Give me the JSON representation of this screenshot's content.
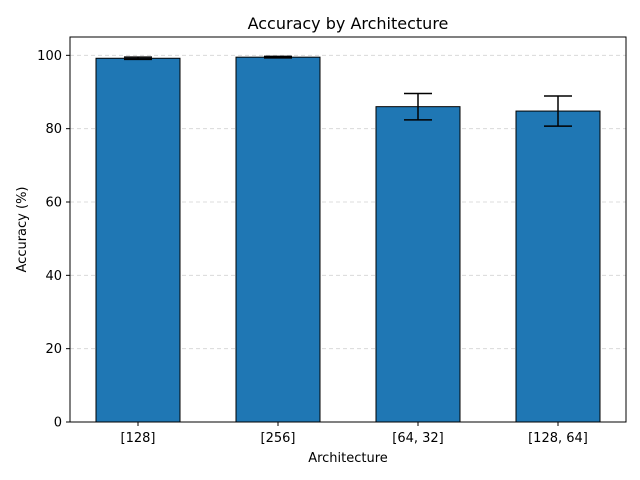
{
  "chart_data": {
    "type": "bar",
    "title": "Accuracy by Architecture",
    "xlabel": "Architecture",
    "ylabel": "Accuracy (%)",
    "categories": [
      "[128]",
      "[256]",
      "[64, 32]",
      "[128, 64]"
    ],
    "values": [
      99.2,
      99.5,
      86.0,
      84.8
    ],
    "errors": [
      0.3,
      0.2,
      3.6,
      4.1
    ],
    "ylim": [
      0,
      105
    ],
    "yticks": [
      0,
      20,
      40,
      60,
      80,
      100
    ],
    "grid": "y-dashed",
    "bar_color": "#1f77b4",
    "edge_color": "#000000",
    "grid_color": "#d3d3d3"
  }
}
